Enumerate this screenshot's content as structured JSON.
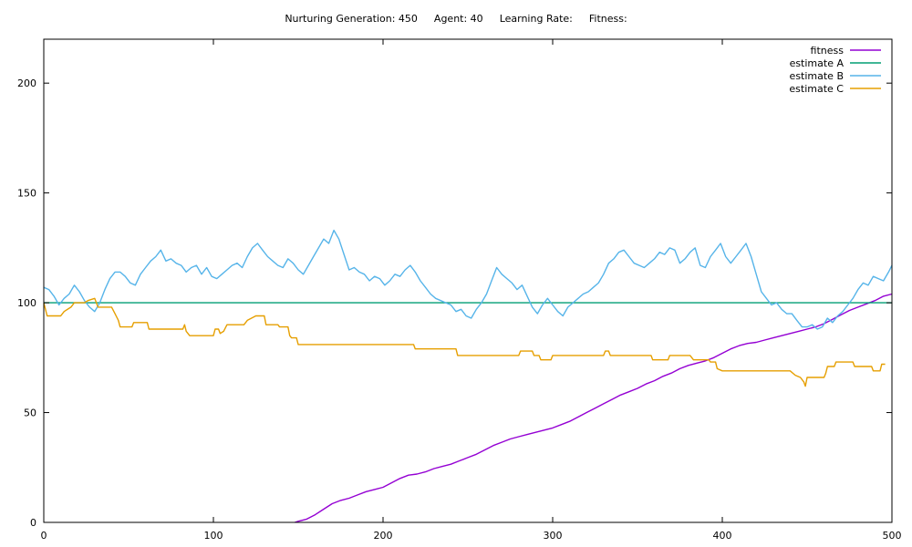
{
  "header": {
    "generation_label": "Nurturing Generation: 450",
    "agent_label": "Agent: 40",
    "learning_rate_label": "Learning Rate:",
    "fitness_label": "Fitness:"
  },
  "chart_data": {
    "type": "line",
    "title": "",
    "xlabel": "",
    "ylabel": "",
    "xlim": [
      0,
      500
    ],
    "ylim": [
      0,
      220
    ],
    "xticks": [
      0,
      100,
      200,
      300,
      400,
      500
    ],
    "yticks": [
      0,
      50,
      100,
      150,
      200
    ],
    "grid": false,
    "legend_position": "top-right",
    "series": [
      {
        "name": "fitness",
        "color": "#9400d3",
        "points": [
          [
            148,
            0
          ],
          [
            150,
            0.5
          ],
          [
            155,
            1.5
          ],
          [
            160,
            3.5
          ],
          [
            165,
            6
          ],
          [
            170,
            8.5
          ],
          [
            175,
            10
          ],
          [
            180,
            11
          ],
          [
            185,
            12.5
          ],
          [
            190,
            14
          ],
          [
            195,
            15
          ],
          [
            200,
            16
          ],
          [
            205,
            18
          ],
          [
            210,
            20
          ],
          [
            215,
            21.5
          ],
          [
            220,
            22
          ],
          [
            225,
            23
          ],
          [
            230,
            24.5
          ],
          [
            235,
            25.5
          ],
          [
            240,
            26.5
          ],
          [
            245,
            28
          ],
          [
            250,
            29.5
          ],
          [
            255,
            31
          ],
          [
            260,
            33
          ],
          [
            265,
            35
          ],
          [
            270,
            36.5
          ],
          [
            275,
            38
          ],
          [
            280,
            39
          ],
          [
            285,
            40
          ],
          [
            290,
            41
          ],
          [
            295,
            42
          ],
          [
            300,
            43
          ],
          [
            305,
            44.5
          ],
          [
            310,
            46
          ],
          [
            315,
            48
          ],
          [
            320,
            50
          ],
          [
            325,
            52
          ],
          [
            330,
            54
          ],
          [
            335,
            56
          ],
          [
            340,
            58
          ],
          [
            345,
            59.5
          ],
          [
            350,
            61
          ],
          [
            355,
            63
          ],
          [
            360,
            64.5
          ],
          [
            365,
            66.5
          ],
          [
            370,
            68
          ],
          [
            375,
            70
          ],
          [
            380,
            71.5
          ],
          [
            385,
            72.5
          ],
          [
            390,
            73.5
          ],
          [
            395,
            75
          ],
          [
            400,
            77
          ],
          [
            405,
            79
          ],
          [
            410,
            80.5
          ],
          [
            415,
            81.5
          ],
          [
            420,
            82
          ],
          [
            425,
            83
          ],
          [
            430,
            84
          ],
          [
            435,
            85
          ],
          [
            440,
            86
          ],
          [
            445,
            87
          ],
          [
            450,
            88
          ],
          [
            455,
            89
          ],
          [
            460,
            90.5
          ],
          [
            465,
            92.5
          ],
          [
            470,
            94.5
          ],
          [
            475,
            96.5
          ],
          [
            480,
            98
          ],
          [
            485,
            99.5
          ],
          [
            490,
            101
          ],
          [
            495,
            103
          ],
          [
            500,
            104
          ]
        ]
      },
      {
        "name": "estimate A",
        "color": "#009e73",
        "points": [
          [
            0,
            100
          ],
          [
            500,
            100
          ]
        ]
      },
      {
        "name": "estimate B",
        "color": "#56b4e9",
        "points": [
          [
            0,
            107
          ],
          [
            3,
            106
          ],
          [
            6,
            103
          ],
          [
            9,
            99
          ],
          [
            12,
            102
          ],
          [
            15,
            104
          ],
          [
            18,
            108
          ],
          [
            21,
            105
          ],
          [
            24,
            101
          ],
          [
            27,
            98
          ],
          [
            30,
            96
          ],
          [
            33,
            100
          ],
          [
            36,
            106
          ],
          [
            39,
            111
          ],
          [
            42,
            114
          ],
          [
            45,
            114
          ],
          [
            48,
            112
          ],
          [
            51,
            109
          ],
          [
            54,
            108
          ],
          [
            57,
            113
          ],
          [
            60,
            116
          ],
          [
            63,
            119
          ],
          [
            66,
            121
          ],
          [
            69,
            124
          ],
          [
            72,
            119
          ],
          [
            75,
            120
          ],
          [
            78,
            118
          ],
          [
            81,
            117
          ],
          [
            84,
            114
          ],
          [
            87,
            116
          ],
          [
            90,
            117
          ],
          [
            93,
            113
          ],
          [
            96,
            116
          ],
          [
            99,
            112
          ],
          [
            102,
            111
          ],
          [
            105,
            113
          ],
          [
            108,
            115
          ],
          [
            111,
            117
          ],
          [
            114,
            118
          ],
          [
            117,
            116
          ],
          [
            120,
            121
          ],
          [
            123,
            125
          ],
          [
            126,
            127
          ],
          [
            129,
            124
          ],
          [
            132,
            121
          ],
          [
            135,
            119
          ],
          [
            138,
            117
          ],
          [
            141,
            116
          ],
          [
            144,
            120
          ],
          [
            147,
            118
          ],
          [
            150,
            115
          ],
          [
            153,
            113
          ],
          [
            156,
            117
          ],
          [
            159,
            121
          ],
          [
            162,
            125
          ],
          [
            165,
            129
          ],
          [
            168,
            127
          ],
          [
            171,
            133
          ],
          [
            174,
            129
          ],
          [
            177,
            122
          ],
          [
            180,
            115
          ],
          [
            183,
            116
          ],
          [
            186,
            114
          ],
          [
            189,
            113
          ],
          [
            192,
            110
          ],
          [
            195,
            112
          ],
          [
            198,
            111
          ],
          [
            201,
            108
          ],
          [
            204,
            110
          ],
          [
            207,
            113
          ],
          [
            210,
            112
          ],
          [
            213,
            115
          ],
          [
            216,
            117
          ],
          [
            219,
            114
          ],
          [
            222,
            110
          ],
          [
            225,
            107
          ],
          [
            228,
            104
          ],
          [
            231,
            102
          ],
          [
            234,
            101
          ],
          [
            237,
            100
          ],
          [
            240,
            99
          ],
          [
            243,
            96
          ],
          [
            246,
            97
          ],
          [
            249,
            94
          ],
          [
            252,
            93
          ],
          [
            255,
            97
          ],
          [
            258,
            100
          ],
          [
            261,
            104
          ],
          [
            264,
            110
          ],
          [
            267,
            116
          ],
          [
            270,
            113
          ],
          [
            273,
            111
          ],
          [
            276,
            109
          ],
          [
            279,
            106
          ],
          [
            282,
            108
          ],
          [
            285,
            103
          ],
          [
            288,
            98
          ],
          [
            291,
            95
          ],
          [
            294,
            99
          ],
          [
            297,
            102
          ],
          [
            300,
            99
          ],
          [
            303,
            96
          ],
          [
            306,
            94
          ],
          [
            309,
            98
          ],
          [
            312,
            100
          ],
          [
            315,
            102
          ],
          [
            318,
            104
          ],
          [
            321,
            105
          ],
          [
            324,
            107
          ],
          [
            327,
            109
          ],
          [
            330,
            113
          ],
          [
            333,
            118
          ],
          [
            336,
            120
          ],
          [
            339,
            123
          ],
          [
            342,
            124
          ],
          [
            345,
            121
          ],
          [
            348,
            118
          ],
          [
            351,
            117
          ],
          [
            354,
            116
          ],
          [
            357,
            118
          ],
          [
            360,
            120
          ],
          [
            363,
            123
          ],
          [
            366,
            122
          ],
          [
            369,
            125
          ],
          [
            372,
            124
          ],
          [
            375,
            118
          ],
          [
            378,
            120
          ],
          [
            381,
            123
          ],
          [
            384,
            125
          ],
          [
            387,
            117
          ],
          [
            390,
            116
          ],
          [
            393,
            121
          ],
          [
            396,
            124
          ],
          [
            399,
            127
          ],
          [
            402,
            121
          ],
          [
            405,
            118
          ],
          [
            408,
            121
          ],
          [
            411,
            124
          ],
          [
            414,
            127
          ],
          [
            417,
            121
          ],
          [
            420,
            113
          ],
          [
            423,
            105
          ],
          [
            426,
            102
          ],
          [
            429,
            99
          ],
          [
            432,
            100
          ],
          [
            435,
            97
          ],
          [
            438,
            95
          ],
          [
            441,
            95
          ],
          [
            444,
            92
          ],
          [
            447,
            89
          ],
          [
            450,
            89
          ],
          [
            453,
            90
          ],
          [
            456,
            88
          ],
          [
            459,
            89
          ],
          [
            462,
            93
          ],
          [
            465,
            91
          ],
          [
            468,
            94
          ],
          [
            471,
            96
          ],
          [
            474,
            99
          ],
          [
            477,
            102
          ],
          [
            480,
            106
          ],
          [
            483,
            109
          ],
          [
            486,
            108
          ],
          [
            489,
            112
          ],
          [
            492,
            111
          ],
          [
            495,
            110
          ],
          [
            498,
            114
          ],
          [
            500,
            117
          ]
        ]
      },
      {
        "name": "estimate C",
        "color": "#e69f00",
        "points": [
          [
            0,
            100
          ],
          [
            2,
            94
          ],
          [
            10,
            94
          ],
          [
            12,
            96
          ],
          [
            16,
            98
          ],
          [
            18,
            100
          ],
          [
            24,
            100
          ],
          [
            26,
            101
          ],
          [
            30,
            102
          ],
          [
            32,
            98
          ],
          [
            40,
            98
          ],
          [
            42,
            95
          ],
          [
            44,
            92
          ],
          [
            45,
            89
          ],
          [
            52,
            89
          ],
          [
            53,
            91
          ],
          [
            61,
            91
          ],
          [
            62,
            88
          ],
          [
            82,
            88
          ],
          [
            83,
            90
          ],
          [
            84,
            87
          ],
          [
            86,
            85
          ],
          [
            100,
            85
          ],
          [
            101,
            88
          ],
          [
            103,
            88
          ],
          [
            104,
            86
          ],
          [
            106,
            87
          ],
          [
            108,
            90
          ],
          [
            118,
            90
          ],
          [
            120,
            92
          ],
          [
            125,
            94
          ],
          [
            130,
            94
          ],
          [
            131,
            90
          ],
          [
            138,
            90
          ],
          [
            139,
            89
          ],
          [
            144,
            89
          ],
          [
            145,
            85
          ],
          [
            146,
            84
          ],
          [
            149,
            84
          ],
          [
            150,
            81
          ],
          [
            160,
            81
          ],
          [
            218,
            81
          ],
          [
            219,
            79
          ],
          [
            243,
            79
          ],
          [
            244,
            76
          ],
          [
            280,
            76
          ],
          [
            281,
            78
          ],
          [
            288,
            78
          ],
          [
            289,
            76
          ],
          [
            292,
            76
          ],
          [
            293,
            74
          ],
          [
            299,
            74
          ],
          [
            300,
            76
          ],
          [
            330,
            76
          ],
          [
            331,
            78
          ],
          [
            333,
            78
          ],
          [
            334,
            76
          ],
          [
            358,
            76
          ],
          [
            359,
            74
          ],
          [
            368,
            74
          ],
          [
            369,
            76
          ],
          [
            381,
            76
          ],
          [
            383,
            74
          ],
          [
            392,
            74
          ],
          [
            393,
            73
          ],
          [
            396,
            73
          ],
          [
            397,
            70
          ],
          [
            400,
            69
          ],
          [
            440,
            69
          ],
          [
            443,
            67
          ],
          [
            446,
            66
          ],
          [
            448,
            64
          ],
          [
            449,
            62
          ],
          [
            450,
            66
          ],
          [
            460,
            66
          ],
          [
            461,
            68
          ],
          [
            462,
            71
          ],
          [
            466,
            71
          ],
          [
            467,
            73
          ],
          [
            477,
            73
          ],
          [
            478,
            71
          ],
          [
            488,
            71
          ],
          [
            489,
            69
          ],
          [
            493,
            69
          ],
          [
            494,
            72
          ],
          [
            496,
            72
          ]
        ]
      }
    ]
  }
}
